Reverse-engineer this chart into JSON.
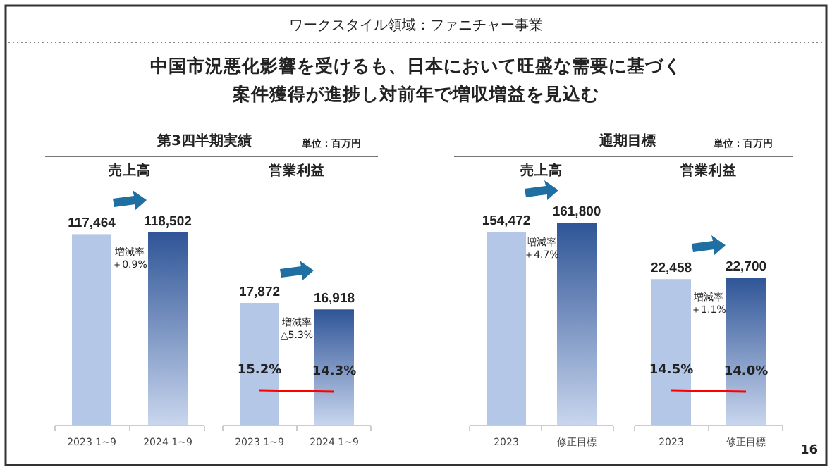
{
  "chart_data": [
    {
      "type": "other",
      "title": "ワークスタイル領域：ファニチャー事業",
      "subtitle": "中国市況悪化影響を受けるも、日本において旺盛な需要に基づく案件獲得が進捗し対前年で増収増益を見込む",
      "annotations": [
        "第3四半期実績",
        "単位：百万円",
        "通期目標",
        "単位：百万円",
        "16"
      ]
    },
    {
      "type": "bar",
      "title": "売上高",
      "categories": [
        "2023 1~9",
        "2024 1~9"
      ],
      "annotations": [
        "増減率＋0.9%"
      ],
      "series": [
        {
          "type": "bar",
          "colors": [
            "#b4c7e7",
            "#2f5597"
          ],
          "values": [
            117464,
            118502
          ],
          "value_labels": [
            "117,464",
            "118,502"
          ]
        }
      ]
    },
    {
      "type": "bar",
      "title": "営業利益",
      "categories": [
        "2023 1~9",
        "2024 1~9"
      ],
      "annotations": [
        "増減率△5.3%",
        "15.2%",
        "14.3%"
      ],
      "series": [
        {
          "type": "bar",
          "colors": [
            "#b4c7e7",
            "#2f5597"
          ],
          "values": [
            17872,
            16918
          ],
          "value_labels": [
            "17,872",
            "16,918"
          ]
        }
      ]
    },
    {
      "type": "bar",
      "title": "売上高",
      "categories": [
        "2023",
        "修正目標"
      ],
      "annotations": [
        "増減率＋4.7%"
      ],
      "series": [
        {
          "type": "bar",
          "colors": [
            "#b4c7e7",
            "#2f5597"
          ],
          "values": [
            154472,
            161800
          ],
          "value_labels": [
            "154,472",
            "161,800"
          ]
        }
      ]
    },
    {
      "type": "bar",
      "title": "営業利益",
      "categories": [
        "2023",
        "修正目標"
      ],
      "annotations": [
        "増減率＋1.1%",
        "14.5%",
        "14.0%"
      ],
      "series": [
        {
          "type": "bar",
          "colors": [
            "#b4c7e7",
            "#2f5597"
          ],
          "values": [
            22458,
            22700
          ],
          "value_labels": [
            "22,458",
            "22,700"
          ]
        }
      ]
    }
  ]
}
